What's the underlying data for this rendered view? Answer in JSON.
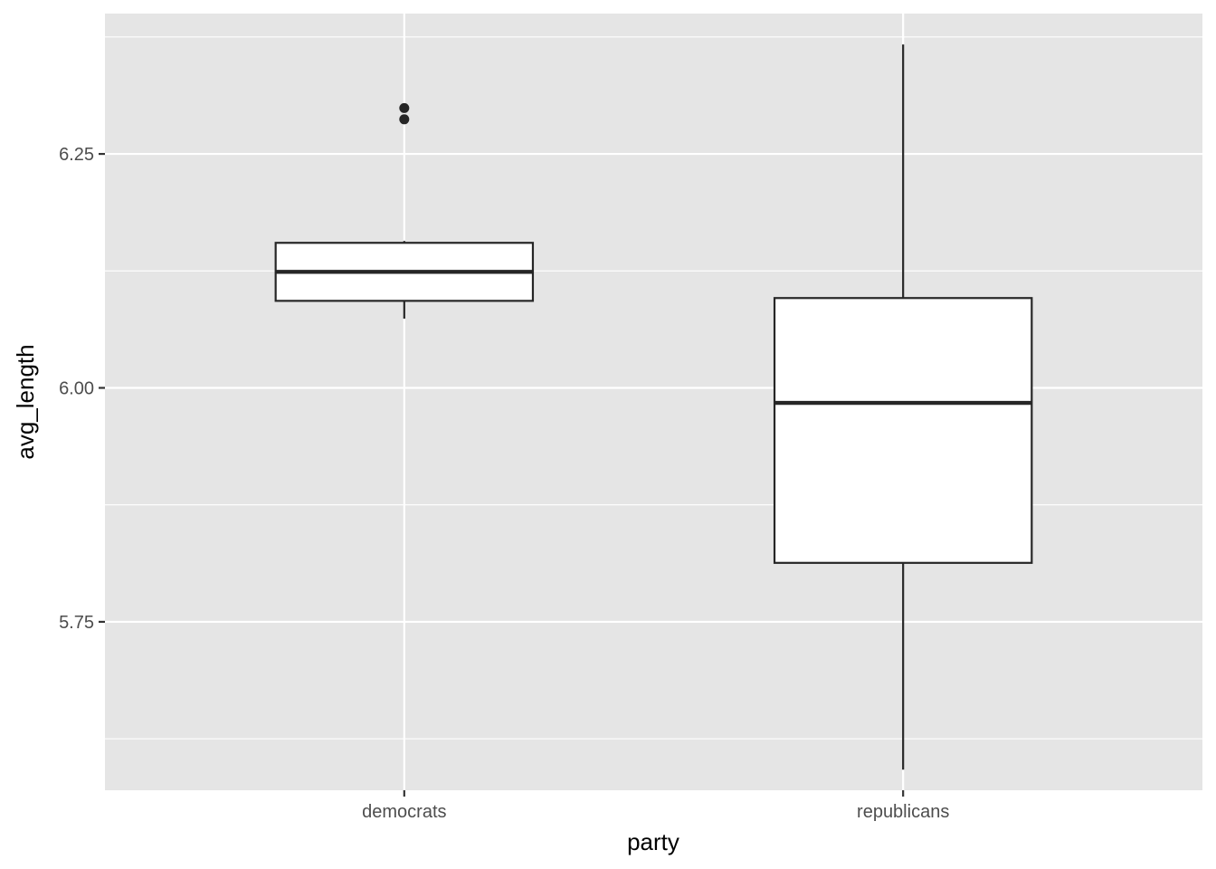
{
  "chart_data": {
    "type": "boxplot",
    "title": "",
    "xlabel": "party",
    "ylabel": "avg_length",
    "categories": [
      "democrats",
      "republicans"
    ],
    "ylim": [
      5.57,
      6.4
    ],
    "yticks": [
      5.75,
      6.0,
      6.25
    ],
    "ytick_labels": [
      "5.75",
      "6.00",
      "6.25"
    ],
    "grid": true,
    "legend": "none",
    "boxes": [
      {
        "category": "democrats",
        "whisker_low": 6.074,
        "q1": 6.093,
        "median": 6.124,
        "q3": 6.155,
        "whisker_high": 6.157,
        "outliers": [
          6.287,
          6.299
        ]
      },
      {
        "category": "republicans",
        "whisker_low": 5.592,
        "q1": 5.813,
        "median": 5.984,
        "q3": 6.096,
        "whisker_high": 6.367,
        "outliers": []
      }
    ],
    "colors": {
      "panel_background": "#e5e5e5",
      "grid": "#ffffff",
      "box_fill": "#ffffff",
      "box_stroke": "#262626",
      "outlier": "#262626",
      "tick_label": "#4d4d4d",
      "axis_title": "#000000",
      "tick_mark": "#333333"
    }
  }
}
